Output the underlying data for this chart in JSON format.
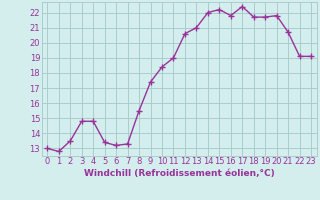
{
  "x": [
    0,
    1,
    2,
    3,
    4,
    5,
    6,
    7,
    8,
    9,
    10,
    11,
    12,
    13,
    14,
    15,
    16,
    17,
    18,
    19,
    20,
    21,
    22,
    23
  ],
  "y": [
    13.0,
    12.8,
    13.5,
    14.8,
    14.8,
    13.4,
    13.2,
    13.3,
    15.5,
    17.4,
    18.4,
    19.0,
    20.6,
    21.0,
    22.0,
    22.2,
    21.8,
    22.4,
    21.7,
    21.7,
    21.8,
    20.7,
    19.1,
    19.1
  ],
  "line_color": "#993399",
  "marker": "+",
  "marker_size": 4,
  "marker_lw": 1.0,
  "line_width": 1.0,
  "bg_color": "#d4eeee",
  "grid_color": "#aacccc",
  "xlabel": "Windchill (Refroidissement éolien,°C)",
  "ylabel_ticks": [
    13,
    14,
    15,
    16,
    17,
    18,
    19,
    20,
    21,
    22
  ],
  "xlim": [
    -0.5,
    23.5
  ],
  "ylim": [
    12.5,
    22.7
  ],
  "xlabel_fontsize": 6.5,
  "tick_fontsize": 6.0,
  "label_color": "#993399"
}
